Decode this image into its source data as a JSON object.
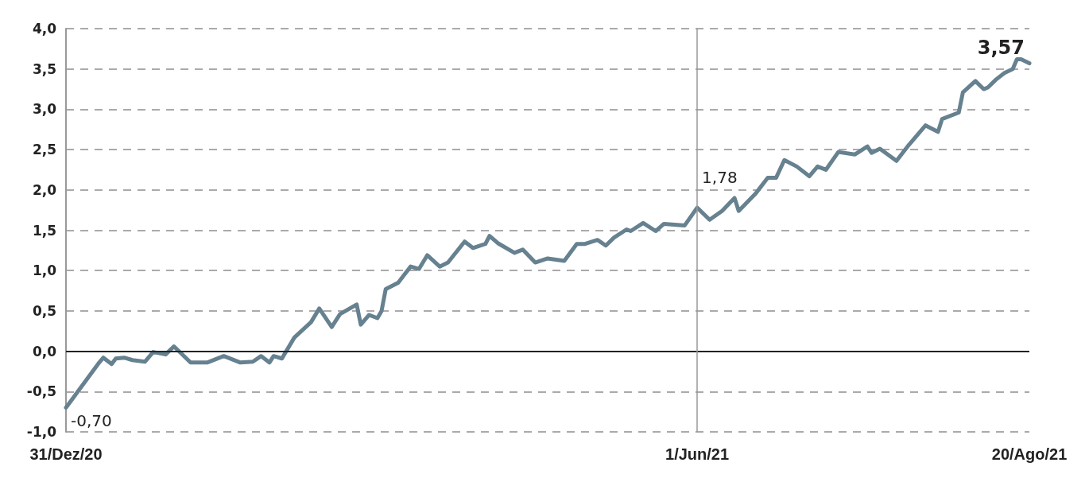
{
  "chart_data": {
    "type": "line",
    "x": [
      "2020-12-31",
      "2021-01-08",
      "2021-01-09",
      "2021-01-11",
      "2021-01-12",
      "2021-01-14",
      "2021-01-16",
      "2021-01-19",
      "2021-01-21",
      "2021-01-24",
      "2021-01-26",
      "2021-01-30",
      "2021-02-03",
      "2021-02-07",
      "2021-02-11",
      "2021-02-14",
      "2021-02-16",
      "2021-02-18",
      "2021-02-19",
      "2021-02-21",
      "2021-02-24",
      "2021-02-28",
      "2021-03-02",
      "2021-03-05",
      "2021-03-07",
      "2021-03-11",
      "2021-03-12",
      "2021-03-14",
      "2021-03-16",
      "2021-03-17",
      "2021-03-18",
      "2021-03-21",
      "2021-03-24",
      "2021-03-26",
      "2021-03-28",
      "2021-03-31",
      "2021-04-02",
      "2021-04-06",
      "2021-04-08",
      "2021-04-11",
      "2021-04-12",
      "2021-04-14",
      "2021-04-18",
      "2021-04-20",
      "2021-04-23",
      "2021-04-26",
      "2021-04-30",
      "2021-05-03",
      "2021-05-05",
      "2021-05-08",
      "2021-05-10",
      "2021-05-12",
      "2021-05-15",
      "2021-05-16",
      "2021-05-19",
      "2021-05-22",
      "2021-05-24",
      "2021-05-29",
      "2021-06-01",
      "2021-06-04",
      "2021-06-07",
      "2021-06-10",
      "2021-06-11",
      "2021-06-15",
      "2021-06-18",
      "2021-06-20",
      "2021-06-22",
      "2021-06-25",
      "2021-06-28",
      "2021-06-30",
      "2021-07-02",
      "2021-07-05",
      "2021-07-09",
      "2021-07-12",
      "2021-07-13",
      "2021-07-15",
      "2021-07-19",
      "2021-07-22",
      "2021-07-26",
      "2021-07-29",
      "2021-07-30",
      "2021-08-03",
      "2021-08-04",
      "2021-08-07",
      "2021-08-09",
      "2021-08-10",
      "2021-08-12",
      "2021-08-14",
      "2021-08-16",
      "2021-08-17",
      "2021-08-18",
      "2021-08-20"
    ],
    "series": [
      {
        "color": "#66818f",
        "values": [
          -0.7,
          -0.14,
          -0.08,
          -0.16,
          -0.09,
          -0.08,
          -0.11,
          -0.13,
          -0.01,
          -0.04,
          0.06,
          -0.14,
          -0.14,
          -0.06,
          -0.14,
          -0.13,
          -0.06,
          -0.14,
          -0.06,
          -0.09,
          0.17,
          0.36,
          0.53,
          0.3,
          0.46,
          0.58,
          0.33,
          0.45,
          0.41,
          0.5,
          0.77,
          0.85,
          1.05,
          1.02,
          1.19,
          1.05,
          1.1,
          1.36,
          1.28,
          1.33,
          1.43,
          1.34,
          1.22,
          1.26,
          1.1,
          1.15,
          1.12,
          1.33,
          1.33,
          1.38,
          1.31,
          1.41,
          1.51,
          1.49,
          1.59,
          1.49,
          1.58,
          1.56,
          1.78,
          1.63,
          1.74,
          1.9,
          1.74,
          1.95,
          2.15,
          2.15,
          2.37,
          2.29,
          2.17,
          2.29,
          2.25,
          2.47,
          2.44,
          2.54,
          2.46,
          2.51,
          2.36,
          2.56,
          2.8,
          2.72,
          2.88,
          2.96,
          3.21,
          3.35,
          3.25,
          3.27,
          3.37,
          3.45,
          3.5,
          3.62,
          3.62,
          3.57
        ]
      }
    ],
    "xlim": [
      "2020-12-31",
      "2021-08-20"
    ],
    "xticks": [
      {
        "value": "2020-12-31",
        "label": "31/Dez/20"
      },
      {
        "value": "2021-06-01",
        "label": "1/Jun/21"
      },
      {
        "value": "2021-08-20",
        "label": "20/Ago/21"
      }
    ],
    "ylim": [
      -1,
      4
    ],
    "yticks": [
      {
        "value": -1,
        "label": "-1,0"
      },
      {
        "value": -0.5,
        "label": "-0,5"
      },
      {
        "value": 0,
        "label": "0,0"
      },
      {
        "value": 0.5,
        "label": "0,5"
      },
      {
        "value": 1,
        "label": "1,0"
      },
      {
        "value": 1.5,
        "label": "1,5"
      },
      {
        "value": 2,
        "label": "2,0"
      },
      {
        "value": 2.5,
        "label": "2,5"
      },
      {
        "value": 3,
        "label": "3,0"
      },
      {
        "value": 3.5,
        "label": "3,5"
      },
      {
        "value": 4,
        "label": "4,0"
      }
    ],
    "grid": "y",
    "line_style": "solid",
    "marker": "none",
    "ref_lines": [
      {
        "axis": "y",
        "value": 0,
        "color": "#222222",
        "line_style": "solid"
      },
      {
        "axis": "x",
        "value": "2021-06-01",
        "color": "#999999",
        "line_style": "solid"
      }
    ],
    "annotations": [
      {
        "text": "-0,70",
        "x": "2020-12-31",
        "y": -0.7
      },
      {
        "text": "1,78",
        "x": "2021-06-01",
        "y": 1.78
      },
      {
        "text": "3,57",
        "x": "2021-08-20",
        "y": 3.57
      }
    ]
  }
}
